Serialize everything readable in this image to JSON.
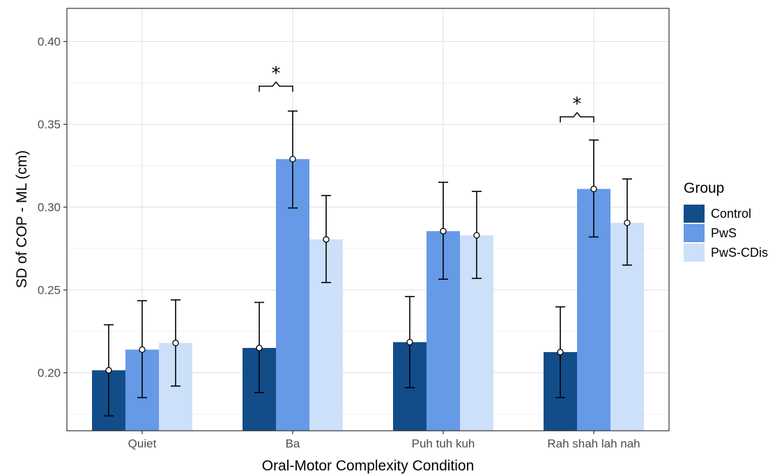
{
  "chart_data": {
    "type": "bar",
    "xlabel": "Oral-Motor Complexity Condition",
    "ylabel": "SD of COP - ML (cm)",
    "categories": [
      "Quiet",
      "Ba",
      "Puh tuh kuh",
      "Rah shah lah nah"
    ],
    "ylim": [
      0.165,
      0.42
    ],
    "yticks": [
      0.2,
      0.25,
      0.3,
      0.35,
      0.4
    ],
    "ytick_labels": [
      "0.20",
      "0.25",
      "0.30",
      "0.35",
      "0.40"
    ],
    "grid": true,
    "legend": {
      "title": "Group",
      "position": "right"
    },
    "series": [
      {
        "name": "Control",
        "color": "#124d8a",
        "values": [
          0.2015,
          0.215,
          0.2185,
          0.2125
        ],
        "err_low": [
          0.174,
          0.188,
          0.191,
          0.185
        ],
        "err_high": [
          0.229,
          0.2425,
          0.246,
          0.2398
        ]
      },
      {
        "name": "PwS",
        "color": "#6699e6",
        "values": [
          0.214,
          0.329,
          0.2855,
          0.311
        ],
        "err_low": [
          0.185,
          0.2995,
          0.2565,
          0.282
        ],
        "err_high": [
          0.2435,
          0.358,
          0.315,
          0.3405
        ]
      },
      {
        "name": "PwS-CDis",
        "color": "#cce0fa",
        "values": [
          0.218,
          0.2805,
          0.283,
          0.2905
        ],
        "err_low": [
          0.192,
          0.2545,
          0.257,
          0.265
        ],
        "err_high": [
          0.244,
          0.307,
          0.3095,
          0.317
        ]
      }
    ],
    "annotations": [
      {
        "text": "*",
        "category_index": 1,
        "from_series": 0,
        "to_series": 1,
        "y": 0.373
      },
      {
        "text": "*",
        "category_index": 3,
        "from_series": 0,
        "to_series": 1,
        "y": 0.3545
      }
    ]
  }
}
